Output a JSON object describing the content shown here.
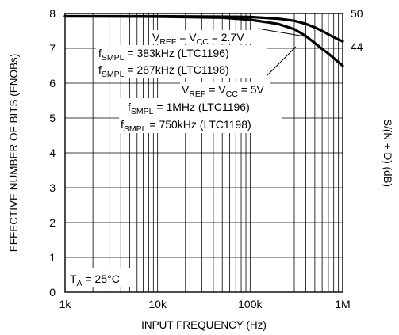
{
  "chart_data": {
    "type": "line",
    "xscale": "log",
    "xlim": [
      1000,
      1000000
    ],
    "ylim": [
      0,
      8
    ],
    "y2lim": [
      0,
      50
    ],
    "grid": true,
    "xlabel": "INPUT FREQUENCY (Hz)",
    "ylabel": "EFFECTIVE NUMBER OF BITS (ENOBs)",
    "y2label": "S/(N + D) (dB)",
    "xtick_labels": [
      {
        "value": 1000,
        "label": "1k"
      },
      {
        "value": 10000,
        "label": "10k"
      },
      {
        "value": 100000,
        "label": "100k"
      },
      {
        "value": 1000000,
        "label": "1M"
      }
    ],
    "ytick_labels": [
      "0",
      "1",
      "2",
      "3",
      "4",
      "5",
      "6",
      "7",
      "8"
    ],
    "y2tick_labels": [
      {
        "value": 44,
        "label": "44"
      },
      {
        "value": 50,
        "label": "50"
      }
    ],
    "series": [
      {
        "x": [
          1000,
          10000,
          50000,
          100000,
          200000,
          300000,
          400000,
          500000,
          600000,
          700000,
          800000,
          900000,
          1000000
        ],
        "y": [
          7.92,
          7.92,
          7.91,
          7.9,
          7.85,
          7.79,
          7.7,
          7.6,
          7.5,
          7.4,
          7.32,
          7.25,
          7.2
        ]
      },
      {
        "x": [
          1000,
          10000,
          50000,
          100000,
          200000,
          300000,
          400000,
          500000,
          600000,
          700000,
          800000,
          900000,
          1000000
        ],
        "y": [
          7.92,
          7.91,
          7.88,
          7.82,
          7.7,
          7.55,
          7.35,
          7.15,
          6.98,
          6.85,
          6.72,
          6.6,
          6.5
        ]
      }
    ],
    "annotations": {
      "a1_l1": {
        "main": "V",
        "sub1": "REF",
        "mid": " = V",
        "sub2": "CC",
        "tail": " = 2.7V"
      },
      "a1_l2": {
        "main": "f",
        "sub1": "SMPL",
        "tail": " = 383kHz (LTC1196)"
      },
      "a1_l3": {
        "main": "f",
        "sub1": "SMPL",
        "tail": " = 287kHz (LTC1198)"
      },
      "a2_l1": {
        "main": "V",
        "sub1": "REF",
        "mid": " = V",
        "sub2": "CC",
        "tail": " = 5V"
      },
      "a2_l2": {
        "main": "f",
        "sub1": "SMPL",
        "tail": " = 1MHz (LTC1196)"
      },
      "a2_l3": {
        "main": "f",
        "sub1": "SMPL",
        "tail": " = 750kHz (LTC1198)"
      },
      "ta": {
        "main": "T",
        "sub1": "A",
        "tail": " = 25°C"
      }
    }
  }
}
